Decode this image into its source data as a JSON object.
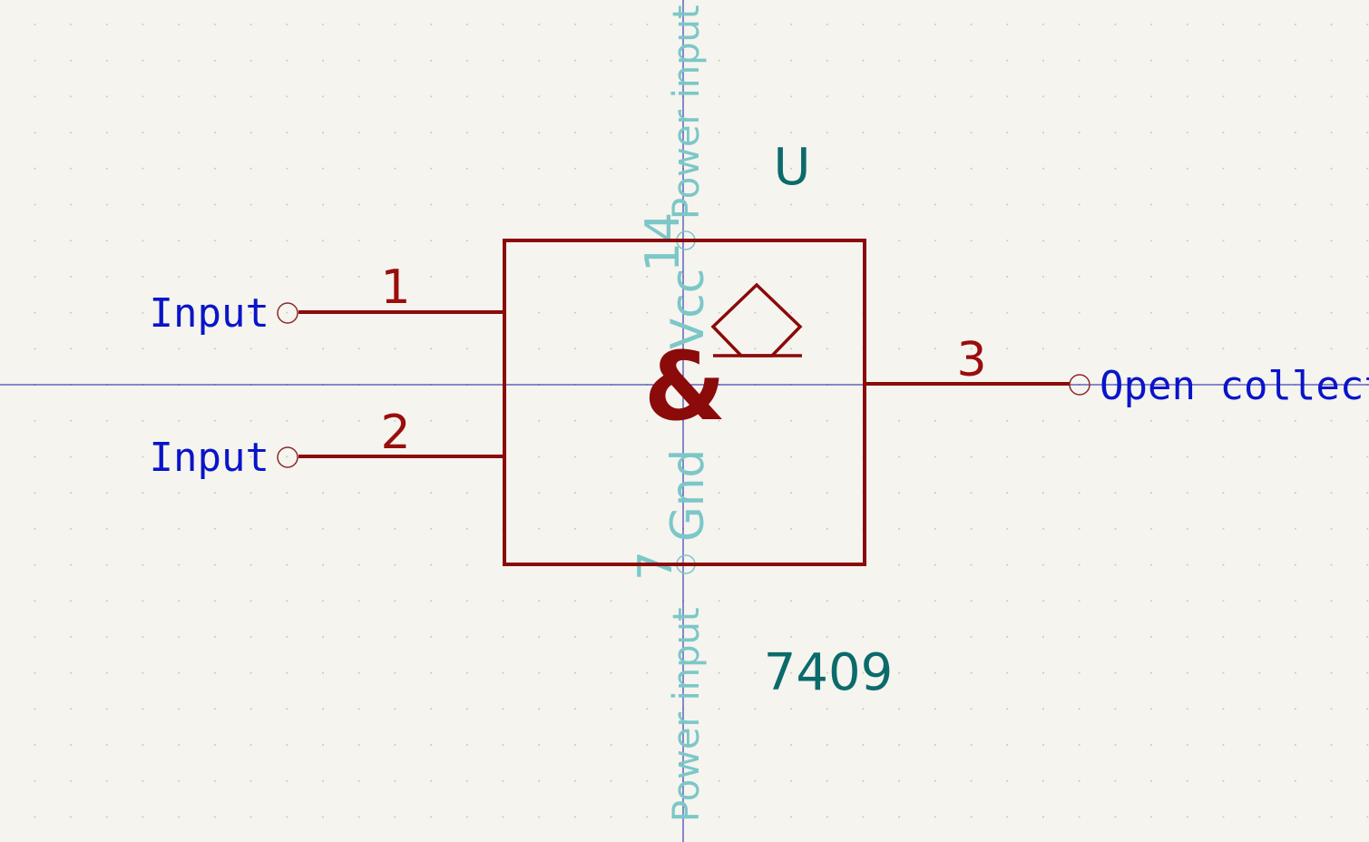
{
  "symbol": {
    "reference": "U",
    "value": "7409",
    "function_glyph": "&",
    "output_type_icon": "open-collector-icon"
  },
  "pins": [
    {
      "number": "1",
      "name": "Input"
    },
    {
      "number": "2",
      "name": "Input"
    },
    {
      "number": "3",
      "name": "Open collector"
    }
  ],
  "hidden_pins": [
    {
      "number": "14",
      "name": "Vcc",
      "type": "Power input"
    },
    {
      "number": "7",
      "name": "Gnd",
      "type": "Power input"
    }
  ],
  "colors": {
    "background": "#f5f4ef",
    "body": "#8b0a0a",
    "pin_name": "#0a14c8",
    "field": "#0b6b6b",
    "hidden_pin": "#7cc7c8",
    "axis": "#1a1aa6"
  }
}
